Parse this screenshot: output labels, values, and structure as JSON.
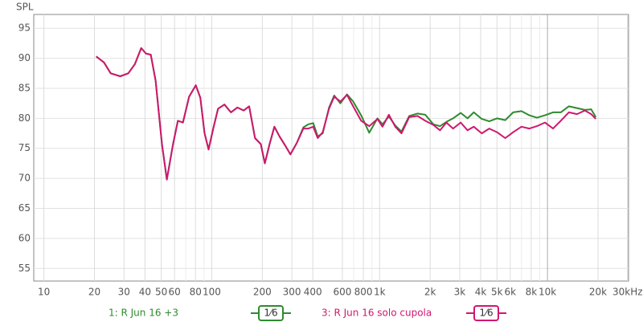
{
  "chart_data": {
    "type": "line",
    "y_label": "SPL",
    "log_x": true,
    "grid": true,
    "xlim": [
      8.7,
      30400
    ],
    "ylim": [
      52.9,
      97.3
    ],
    "yticks": [
      55,
      60,
      65,
      70,
      75,
      80,
      85,
      90,
      95
    ],
    "xticks": [
      10,
      20,
      30,
      40,
      50,
      60,
      80,
      100,
      200,
      300,
      400,
      600,
      800,
      {
        "value": 1000,
        "label": "1k"
      },
      {
        "value": 2000,
        "label": "2k"
      },
      {
        "value": 3000,
        "label": "3k"
      },
      {
        "value": 4000,
        "label": "4k"
      },
      {
        "value": 5000,
        "label": "5k"
      },
      {
        "value": 6000,
        "label": "6k"
      },
      {
        "value": 8000,
        "label": "8k"
      },
      {
        "value": 10000,
        "label": "10k"
      },
      {
        "value": 20000,
        "label": "20k"
      },
      {
        "value": 30000,
        "label": "30kHz"
      }
    ],
    "x_minor_ticks": [
      70,
      90,
      700,
      900,
      7000,
      9000
    ],
    "x": [
      20.5,
      22.8,
      25,
      28.5,
      31.8,
      34.8,
      38,
      40.5,
      43.3,
      46.3,
      50.5,
      54,
      58.8,
      62.8,
      67.3,
      73.3,
      80.3,
      85.5,
      90.5,
      95.7,
      102,
      109,
      119,
      130,
      142,
      155,
      167,
      181,
      196,
      207,
      221,
      236,
      253,
      275,
      294,
      321,
      351,
      376,
      402,
      428,
      458,
      500,
      536,
      584,
      639,
      696,
      776,
      867,
      971,
      1040,
      1135,
      1240,
      1350,
      1500,
      1680,
      1870,
      2090,
      2290,
      2500,
      2740,
      3040,
      3340,
      3640,
      4060,
      4500,
      5000,
      5600,
      6250,
      7000,
      7800,
      8650,
      9660,
      10800,
      12000,
      13400,
      15000,
      16700,
      18200,
      19400
    ],
    "series": [
      {
        "name": "1: R Jun 16 +3",
        "color": "#2e8b2e",
        "smoothing": "1⁄6",
        "values": [
          90.3,
          89.3,
          87.5,
          87.0,
          87.5,
          89,
          91.7,
          90.8,
          90.6,
          86.3,
          75.7,
          69.8,
          75.7,
          79.6,
          79.3,
          83.6,
          85.5,
          83.4,
          77.6,
          74.8,
          78.3,
          81.6,
          82.3,
          81,
          81.8,
          81.3,
          82,
          76.7,
          75.7,
          72.5,
          75.7,
          78.6,
          77,
          75.4,
          74,
          75.9,
          78.5,
          79.0,
          79.2,
          77.0,
          77.5,
          81.8,
          83.8,
          82.5,
          84.0,
          82.8,
          80.5,
          77.6,
          80.0,
          79.0,
          80.3,
          78.8,
          77.8,
          80.4,
          80.8,
          80.6,
          79.0,
          78.7,
          79.4,
          80.0,
          80.9,
          80.0,
          81.0,
          79.9,
          79.5,
          80.0,
          79.7,
          81.0,
          81.2,
          80.5,
          80.1,
          80.5,
          81.0,
          81.0,
          82.0,
          81.7,
          81.4,
          81.5,
          80.2
        ]
      },
      {
        "name": "3: R Jun 16 solo cupola",
        "color": "#d0176e",
        "smoothing": "1⁄6",
        "values": [
          90.3,
          89.3,
          87.5,
          87.0,
          87.5,
          89,
          91.7,
          90.8,
          90.6,
          86.3,
          75.7,
          69.8,
          75.7,
          79.6,
          79.3,
          83.6,
          85.5,
          83.4,
          77.6,
          74.8,
          78.3,
          81.6,
          82.3,
          81,
          81.8,
          81.3,
          82,
          76.7,
          75.7,
          72.5,
          75.7,
          78.6,
          77,
          75.4,
          74,
          75.9,
          78.3,
          78.3,
          78.6,
          76.7,
          77.7,
          81.6,
          83.6,
          82.8,
          83.9,
          82,
          79.6,
          78.7,
          79.9,
          78.6,
          80.6,
          78.6,
          77.5,
          80.2,
          80.4,
          79.6,
          78.9,
          78.0,
          79.3,
          78.3,
          79.3,
          78.0,
          78.6,
          77.5,
          78.3,
          77.7,
          76.7,
          77.7,
          78.6,
          78.3,
          78.7,
          79.3,
          78.3,
          79.6,
          81,
          80.7,
          81.3,
          80.7,
          79.9
        ]
      }
    ]
  }
}
